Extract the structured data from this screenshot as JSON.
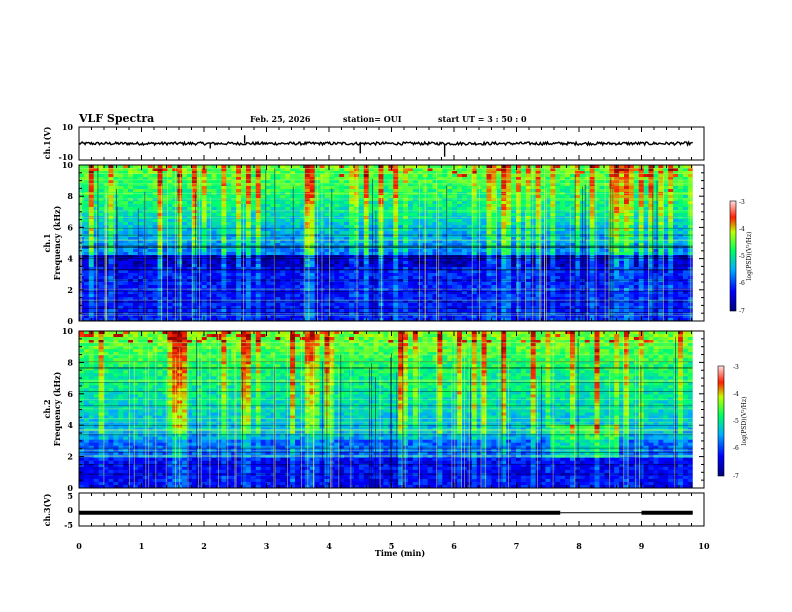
{
  "header": {
    "title": "VLF Spectra",
    "date": "Feb. 25, 2026",
    "station": "station= OUI",
    "start_ut": "start  UT  =  3 : 50 : 0"
  },
  "chart_data": [
    {
      "type": "line",
      "name": "ch1-voltage",
      "ylabel": "ch.1(V)",
      "ylim": [
        -10,
        10
      ],
      "yticks": [
        "10",
        "-10"
      ],
      "baseline": 0,
      "spikes": [
        {
          "t": 2.65,
          "v": 5
        },
        {
          "t": 4.5,
          "v": -6
        },
        {
          "t": 5.85,
          "v": -8
        },
        {
          "t": 2.1,
          "v": -3
        }
      ]
    },
    {
      "type": "heatmap",
      "name": "ch1-spectrogram",
      "ylabel": "ch.1",
      "ylabel2": "Frequency  (kHz)",
      "ylim": [
        0,
        10
      ],
      "yticks": [
        "0",
        "2",
        "4",
        "6",
        "8",
        "10"
      ],
      "colorbar": {
        "label": "log(PSD)(V²/Hz)",
        "range": [
          -7,
          -3
        ],
        "ticks": [
          "-3",
          "-4",
          "-5",
          "-6",
          "-7"
        ]
      }
    },
    {
      "type": "heatmap",
      "name": "ch2-spectrogram",
      "ylabel": "ch.2",
      "ylabel2": "Frequency  (kHz)",
      "ylim": [
        0,
        10
      ],
      "yticks": [
        "0",
        "2",
        "4",
        "6",
        "8",
        "10"
      ],
      "colorbar": {
        "label": "log(PSD)(V²/Hz)",
        "range": [
          -7,
          -3
        ],
        "ticks": [
          "-3",
          "-4",
          "-5",
          "-6",
          "-7"
        ]
      }
    },
    {
      "type": "line",
      "name": "ch3-voltage",
      "ylabel": "ch.3(V)",
      "ylim": [
        -5,
        5
      ],
      "yticks": [
        "5",
        "0",
        "-5"
      ],
      "level": -1,
      "gap": [
        7.7,
        9.0
      ]
    }
  ],
  "xaxis": {
    "label": "Time  (min)",
    "range": [
      0,
      10
    ],
    "ticks": [
      "0",
      "1",
      "2",
      "3",
      "4",
      "5",
      "6",
      "7",
      "8",
      "9",
      "10"
    ]
  },
  "colors": {
    "colormap": [
      "#00008b",
      "#0000ff",
      "#00bfff",
      "#00ff80",
      "#ffff00",
      "#ff0000",
      "#8b0000"
    ]
  }
}
